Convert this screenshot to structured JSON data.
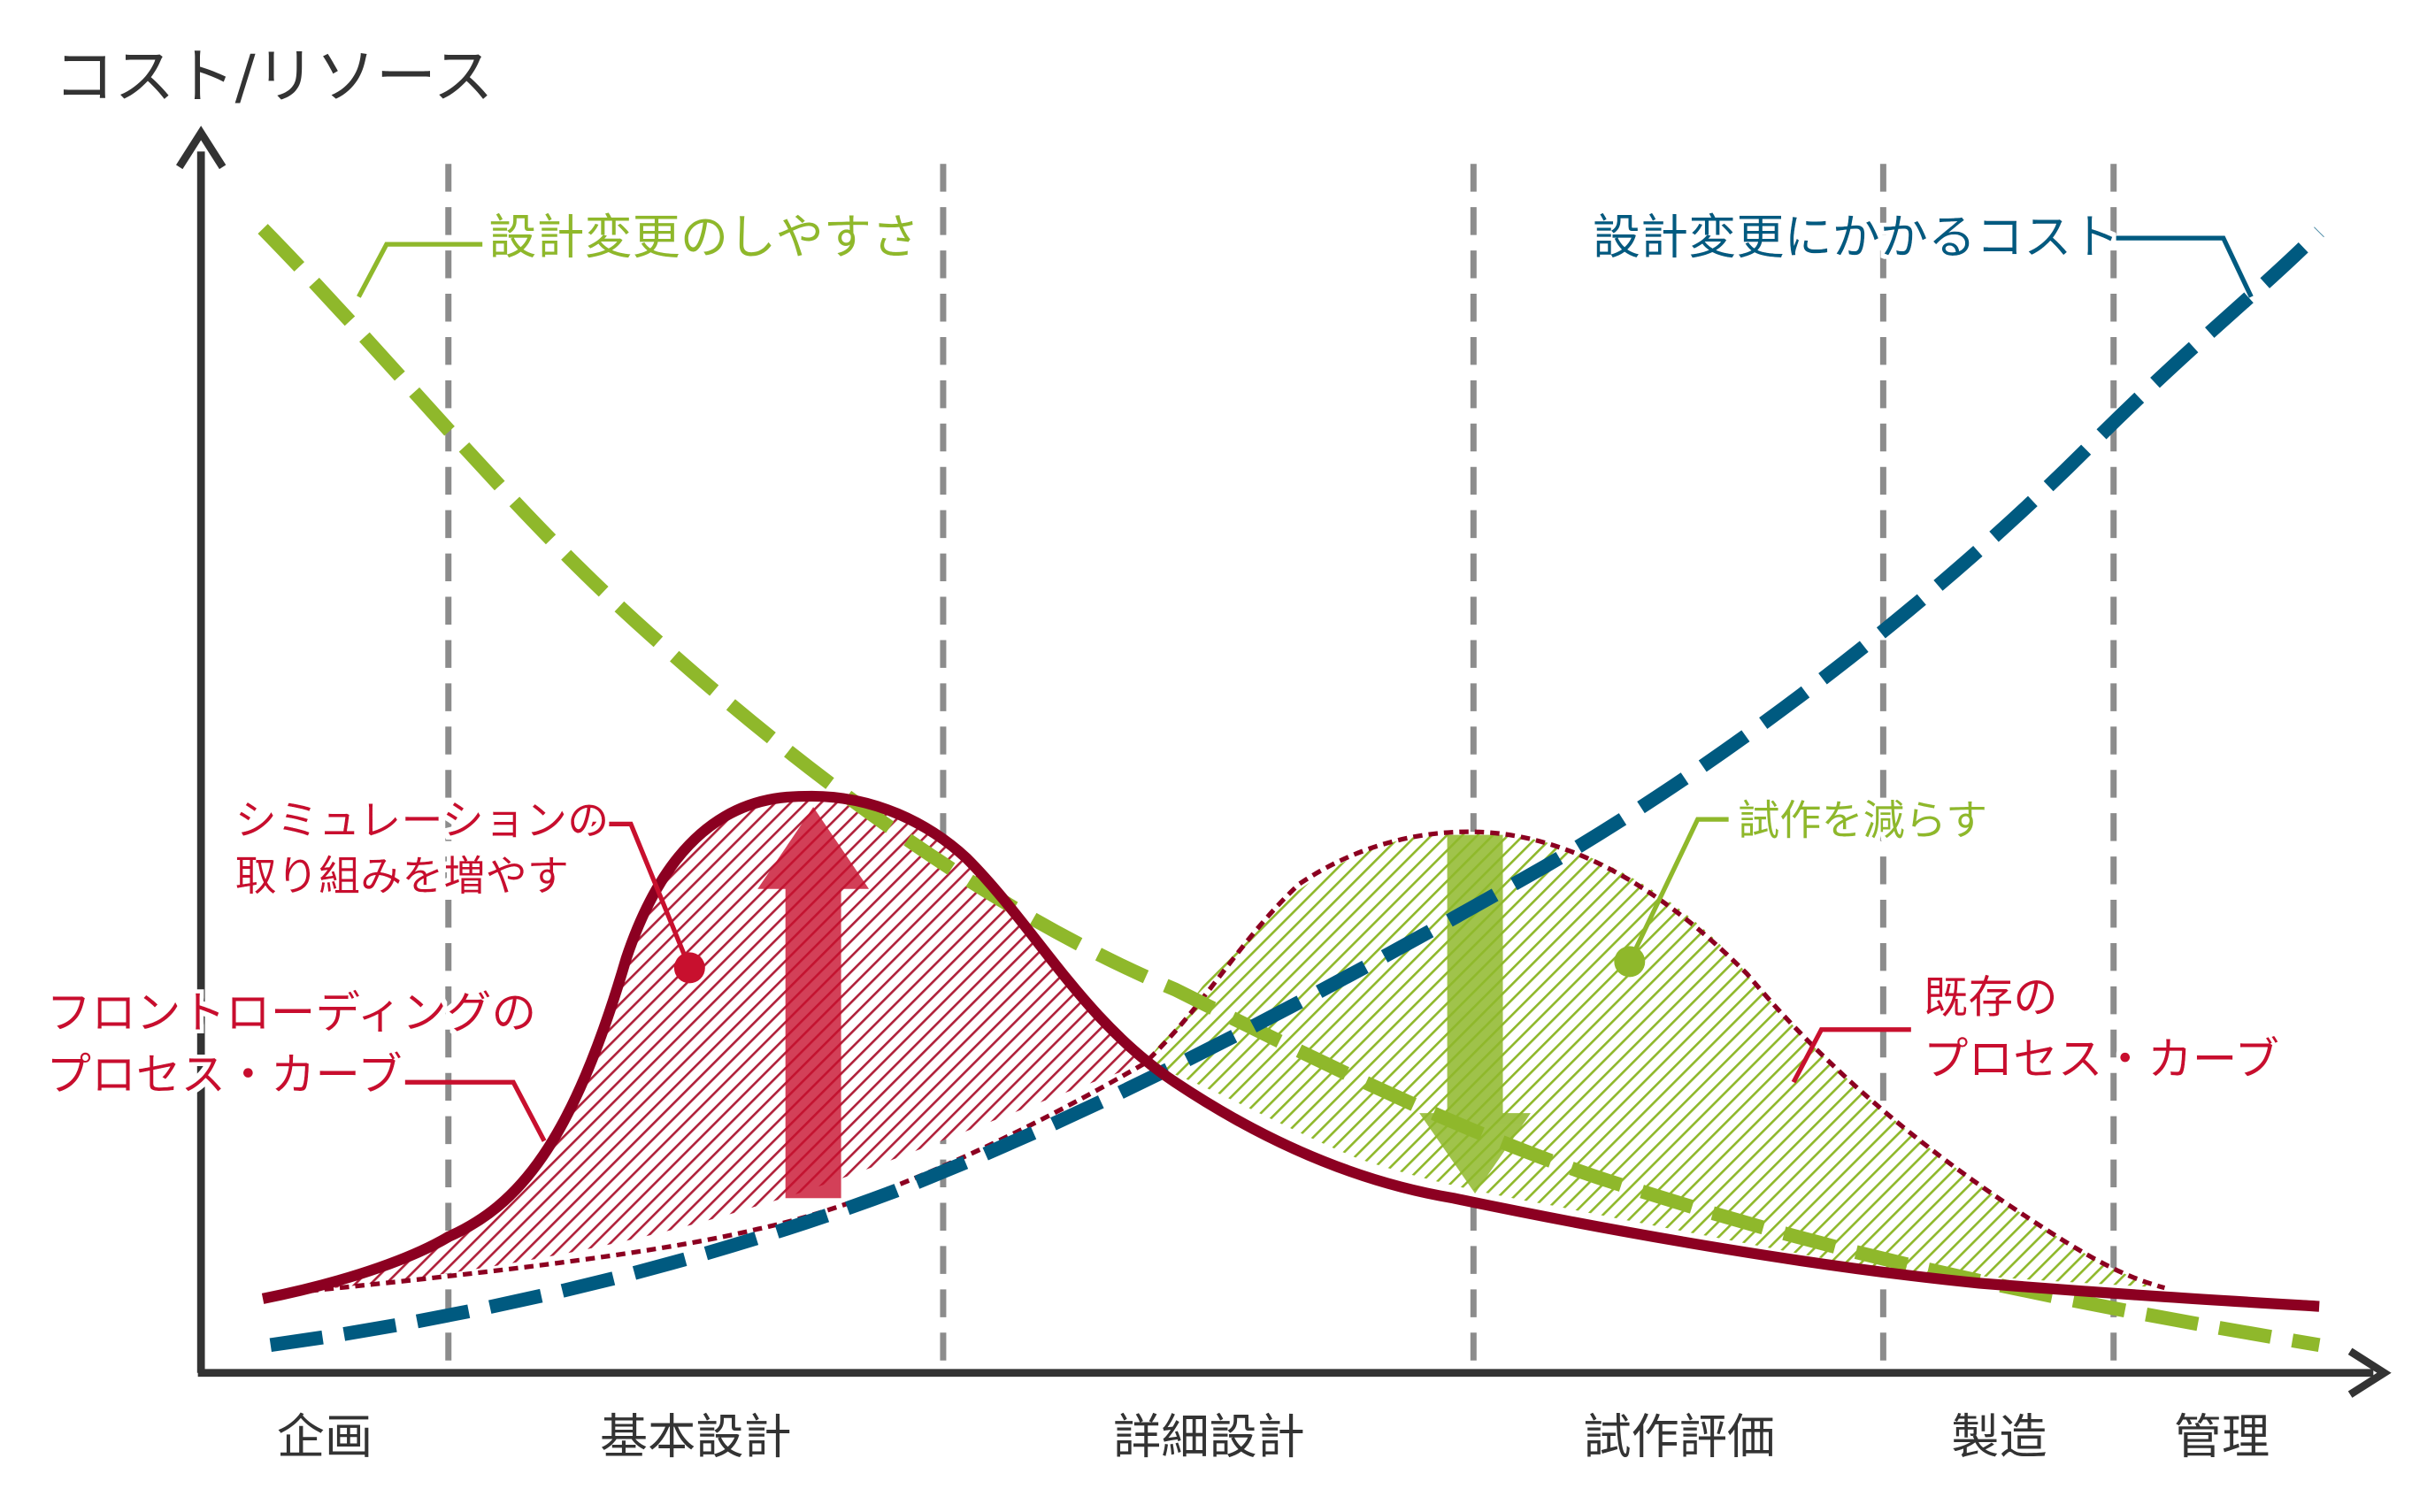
{
  "chart_data": {
    "type": "line",
    "title": "",
    "ylabel": "コスト/リソース",
    "xlabel": "",
    "phases": [
      "企画",
      "基本設計",
      "詳細設計",
      "試作評価",
      "製造",
      "管理"
    ],
    "series": [
      {
        "name": "設計変更のしやすさ",
        "style": "dashed",
        "values": [
          1.0,
          0.8,
          0.57,
          0.4,
          0.25,
          0.16,
          0.08,
          0.04
        ]
      },
      {
        "name": "設計変更にかかるコスト",
        "style": "dashed",
        "values": [
          0.03,
          0.06,
          0.15,
          0.3,
          0.46,
          0.64,
          0.84,
          1.0
        ]
      },
      {
        "name": "フロントローディングのプロセス・カーブ",
        "style": "solid",
        "values": [
          0.06,
          0.14,
          0.45,
          0.52,
          0.26,
          0.17,
          0.11,
          0.09
        ]
      },
      {
        "name": "既存のプロセス・カーブ",
        "style": "dotted",
        "values": [
          0.06,
          0.09,
          0.14,
          0.24,
          0.45,
          0.3,
          0.1,
          0.06
        ]
      }
    ],
    "annotations": [
      {
        "text": "シミュレーションの\n取り組みを増やす",
        "effect": "increase"
      },
      {
        "text": "試作を減らす",
        "effect": "decrease"
      }
    ],
    "grid": false,
    "legend": "none"
  },
  "colors": {
    "ease": "#8fb82b",
    "cost": "#005a80",
    "front": "#8c0021",
    "frontText": "#c8102e",
    "axis": "#333333",
    "phaseLine": "#8c8c8c"
  }
}
